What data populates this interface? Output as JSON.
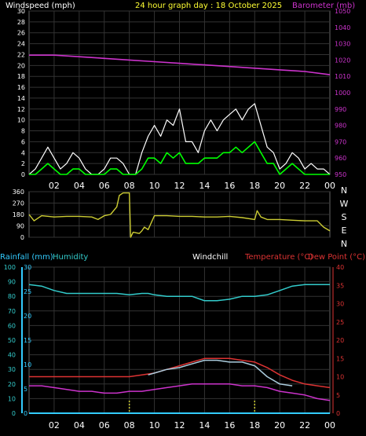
{
  "header": {
    "left_label": "Windspeed (mph)",
    "center_label": "24 hour graph day : 18 October 2025",
    "right_label": "Barometer (mb)"
  },
  "bottom_header": {
    "rainfall_label": "Rainfall (mm)",
    "humidity_label": "Humidity",
    "windchill_label": "Windchill",
    "temperature_label": "Temperature (°C)",
    "dewpoint_label": "Dew Point (°C)"
  },
  "colors": {
    "background": "#000000",
    "grid": "#333333",
    "axis_text": "#ffffff",
    "windspeed": "#ffffff",
    "windavg": "#00ff00",
    "barometer": "#cc33cc",
    "direction": "#cccc33",
    "humidity": "#33cccc",
    "rainfall": "#33ccff",
    "temperature": "#dd3333",
    "dewpoint": "#cc33cc",
    "windchill": "#aaccdd",
    "time_marker": "#cccc33"
  },
  "time_ticks": [
    "02",
    "04",
    "06",
    "08",
    "10",
    "12",
    "14",
    "16",
    "18",
    "20",
    "22",
    "00"
  ],
  "chart_data": [
    {
      "type": "line",
      "panel": "wind-barometer",
      "x_unit": "hour",
      "xlim": [
        0,
        24
      ],
      "y_left": {
        "label": "Windspeed (mph)",
        "ylim": [
          0,
          30
        ],
        "ticks": [
          0,
          2,
          4,
          6,
          8,
          10,
          12,
          14,
          16,
          18,
          20,
          22,
          24,
          26,
          28,
          30
        ]
      },
      "y_right": {
        "label": "Barometer (mb)",
        "ylim": [
          950,
          1050
        ],
        "ticks": [
          950,
          960,
          970,
          980,
          990,
          1000,
          1010,
          1020,
          1030,
          1040,
          1050
        ]
      },
      "series": [
        {
          "name": "Windspeed (mph)",
          "axis": "left",
          "key": "gust",
          "x": [
            0,
            0.5,
            1,
            1.5,
            2,
            2.5,
            3,
            3.5,
            4,
            4.5,
            5,
            5.5,
            6,
            6.5,
            7,
            7.5,
            8,
            8.5,
            9,
            9.5,
            10,
            10.5,
            11,
            11.5,
            12,
            12.5,
            13,
            13.5,
            14,
            14.5,
            15,
            15.5,
            16,
            16.5,
            17,
            17.5,
            18,
            18.5,
            19,
            19.5,
            20,
            20.5,
            21,
            21.5,
            22,
            22.5,
            23,
            23.5,
            24
          ],
          "y": [
            0,
            1,
            3,
            5,
            3,
            1,
            2,
            4,
            3,
            1,
            0,
            0,
            1,
            3,
            3,
            2,
            0,
            0,
            4,
            7,
            9,
            7,
            10,
            9,
            12,
            6,
            6,
            4,
            8,
            10,
            8,
            10,
            11,
            12,
            10,
            12,
            13,
            9,
            5,
            4,
            1,
            2,
            4,
            3,
            1,
            2,
            1,
            1,
            0
          ]
        },
        {
          "name": "Wind average",
          "axis": "left",
          "key": "avg",
          "x": [
            0,
            0.5,
            1,
            1.5,
            2,
            2.5,
            3,
            3.5,
            4,
            4.5,
            5,
            5.5,
            6,
            6.5,
            7,
            7.5,
            8,
            8.5,
            9,
            9.5,
            10,
            10.5,
            11,
            11.5,
            12,
            12.5,
            13,
            13.5,
            14,
            14.5,
            15,
            15.5,
            16,
            16.5,
            17,
            17.5,
            18,
            18.5,
            19,
            19.5,
            20,
            20.5,
            21,
            21.5,
            22,
            22.5,
            23,
            23.5,
            24
          ],
          "y": [
            0,
            0,
            1,
            2,
            1,
            0,
            0,
            1,
            1,
            0,
            0,
            0,
            0,
            1,
            1,
            0,
            0,
            0,
            1,
            3,
            3,
            2,
            4,
            3,
            4,
            2,
            2,
            2,
            3,
            3,
            3,
            4,
            4,
            5,
            4,
            5,
            6,
            4,
            2,
            2,
            0,
            1,
            2,
            1,
            0,
            0,
            0,
            0,
            0
          ]
        },
        {
          "name": "Barometer (mb)",
          "axis": "right",
          "key": "baro",
          "x": [
            0,
            2,
            4,
            6,
            8,
            10,
            12,
            14,
            16,
            18,
            20,
            22,
            24
          ],
          "y": [
            1023,
            1023,
            1022,
            1021,
            1020,
            1019,
            1018,
            1017,
            1016,
            1015,
            1014,
            1013,
            1011
          ]
        }
      ]
    },
    {
      "type": "line",
      "panel": "wind-direction",
      "x_unit": "hour",
      "xlim": [
        0,
        24
      ],
      "y_left": {
        "ylim": [
          0,
          360
        ],
        "ticks": [
          0,
          90,
          180,
          270,
          360
        ]
      },
      "y_right_labels": [
        "N",
        "W",
        "S",
        "E",
        "N"
      ],
      "series": [
        {
          "name": "Wind direction",
          "key": "dir",
          "x": [
            0,
            0.4,
            1,
            2,
            3,
            4,
            5,
            5.5,
            6,
            6.5,
            7,
            7.2,
            7.5,
            8,
            8.1,
            8.3,
            8.8,
            9,
            9.2,
            9.5,
            10,
            11,
            12,
            13,
            14,
            15,
            16,
            17,
            18,
            18.2,
            18.5,
            19,
            20,
            21,
            22,
            23,
            23.5,
            24
          ],
          "y": [
            180,
            130,
            170,
            160,
            165,
            165,
            160,
            140,
            170,
            180,
            240,
            330,
            350,
            350,
            0,
            40,
            30,
            50,
            80,
            60,
            170,
            170,
            165,
            165,
            160,
            160,
            165,
            155,
            140,
            210,
            160,
            140,
            140,
            135,
            130,
            130,
            80,
            50
          ]
        }
      ]
    },
    {
      "type": "line",
      "panel": "temperature-humidity",
      "x_unit": "hour",
      "xlim": [
        0,
        24
      ],
      "y_left": {
        "label": "Humidity",
        "ylim": [
          0,
          100
        ],
        "ticks": [
          0,
          10,
          20,
          30,
          40,
          50,
          60,
          70,
          80,
          90,
          100
        ]
      },
      "y_rain": {
        "label": "Rainfall (mm)",
        "ylim": [
          0,
          30
        ],
        "ticks": [
          0,
          5,
          10,
          15,
          20,
          25,
          30
        ]
      },
      "y_right": {
        "label": "Temperature (°C)",
        "ylim": [
          0,
          40
        ],
        "ticks": [
          0,
          5,
          10,
          15,
          20,
          25,
          30,
          35,
          40
        ]
      },
      "series": [
        {
          "name": "Humidity",
          "axis": "left",
          "key": "hum",
          "x": [
            0,
            1,
            2,
            3,
            4,
            5,
            6,
            7,
            8,
            9,
            9.5,
            10,
            11,
            12,
            13,
            14,
            15,
            16,
            17,
            18,
            19,
            20,
            21,
            22,
            23,
            24
          ],
          "y": [
            88,
            87,
            84,
            82,
            82,
            82,
            82,
            82,
            81,
            82,
            82,
            81,
            80,
            80,
            80,
            77,
            77,
            78,
            80,
            80,
            81,
            84,
            87,
            88,
            88,
            88
          ]
        },
        {
          "name": "Temperature (°C)",
          "axis": "right",
          "key": "temp",
          "x": [
            0,
            1,
            2,
            3,
            4,
            5,
            6,
            7,
            8,
            9,
            10,
            11,
            12,
            13,
            14,
            15,
            16,
            17,
            18,
            19,
            20,
            21,
            22,
            23,
            24
          ],
          "y": [
            10,
            10,
            10,
            10,
            10,
            10,
            10,
            10,
            10,
            10.5,
            11,
            12,
            13,
            14,
            15,
            15,
            15,
            14.5,
            14,
            12.5,
            10.5,
            9,
            8,
            7.5,
            7
          ]
        },
        {
          "name": "Windchill",
          "axis": "right",
          "key": "chill",
          "x": [
            9.5,
            10,
            11,
            12,
            13,
            14,
            15,
            16,
            17,
            18,
            19,
            20,
            21
          ],
          "y": [
            10.5,
            11,
            12,
            12.5,
            13.5,
            14.5,
            14.5,
            14,
            14,
            13,
            10,
            8,
            7.5
          ]
        },
        {
          "name": "Dew Point (°C)",
          "axis": "right",
          "key": "dew",
          "x": [
            0,
            1,
            2,
            3,
            4,
            5,
            6,
            7,
            8,
            9,
            10,
            11,
            12,
            13,
            14,
            15,
            16,
            17,
            18,
            19,
            20,
            21,
            22,
            23,
            24
          ],
          "y": [
            7.5,
            7.5,
            7,
            6.5,
            6,
            6,
            5.5,
            5.5,
            6,
            6,
            6.5,
            7,
            7.5,
            8,
            8,
            8,
            8,
            7.5,
            7.5,
            7,
            6,
            5.5,
            5,
            4,
            3.5
          ]
        },
        {
          "name": "Rainfall (mm)",
          "axis": "rain",
          "key": "rain",
          "x": [
            0,
            24
          ],
          "y": [
            0,
            0
          ]
        }
      ],
      "time_markers": [
        8,
        18
      ]
    }
  ]
}
